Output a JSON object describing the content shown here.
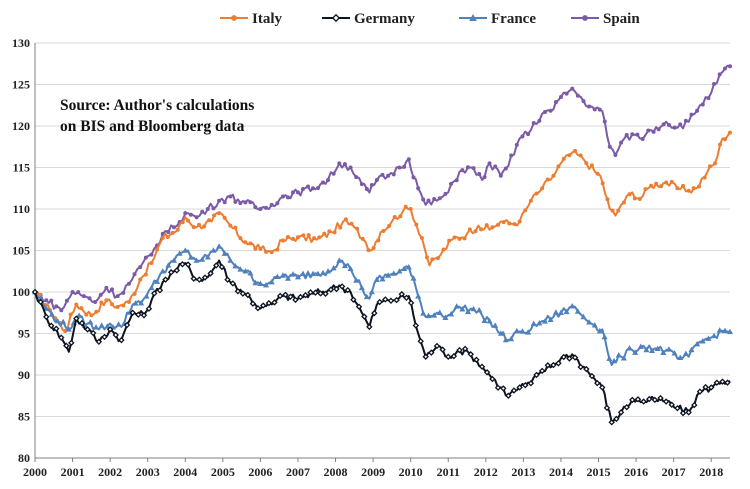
{
  "chart_data": {
    "type": "line",
    "title": "",
    "xlabel": "",
    "ylabel": "",
    "xlim": [
      2000,
      2018.5
    ],
    "ylim": [
      80,
      130
    ],
    "x_ticks": [
      "2000",
      "2001",
      "2002",
      "2003",
      "2004",
      "2005",
      "2006",
      "2007",
      "2008",
      "2009",
      "2010",
      "2011",
      "2012",
      "2013",
      "2014",
      "2015",
      "2016",
      "2017",
      "2018"
    ],
    "y_ticks": [
      "80",
      "85",
      "90",
      "95",
      "100",
      "105",
      "110",
      "115",
      "120",
      "125",
      "130"
    ],
    "grid": "horizontal",
    "legend_position": "top",
    "annotation": {
      "line1": "Source: Author's calculations",
      "line2": "on BIS and Bloomberg data"
    },
    "series": [
      {
        "name": "Italy",
        "color": "#ED7D31",
        "marker": "circle",
        "points": [
          [
            2000.0,
            100
          ],
          [
            2000.4,
            97.8
          ],
          [
            2000.8,
            95.3
          ],
          [
            2001.1,
            98.5
          ],
          [
            2001.5,
            97.2
          ],
          [
            2001.9,
            99.0
          ],
          [
            2002.2,
            98.2
          ],
          [
            2002.5,
            98.8
          ],
          [
            2002.8,
            101.5
          ],
          [
            2003.1,
            103.5
          ],
          [
            2003.4,
            106.5
          ],
          [
            2003.8,
            107.5
          ],
          [
            2004.0,
            109.0
          ],
          [
            2004.3,
            107.8
          ],
          [
            2004.7,
            108.5
          ],
          [
            2004.9,
            109.5
          ],
          [
            2005.2,
            108.0
          ],
          [
            2005.6,
            106.0
          ],
          [
            2006.0,
            105.2
          ],
          [
            2006.3,
            104.8
          ],
          [
            2006.6,
            106.2
          ],
          [
            2007.0,
            106.6
          ],
          [
            2007.5,
            106.3
          ],
          [
            2007.9,
            107.2
          ],
          [
            2008.2,
            108.5
          ],
          [
            2008.5,
            107.8
          ],
          [
            2008.8,
            106.0
          ],
          [
            2008.95,
            105.0
          ],
          [
            2009.2,
            107.2
          ],
          [
            2009.5,
            108.5
          ],
          [
            2009.8,
            109.8
          ],
          [
            2010.0,
            110.0
          ],
          [
            2010.3,
            106.5
          ],
          [
            2010.5,
            103.2
          ],
          [
            2010.8,
            104.5
          ],
          [
            2011.1,
            106.3
          ],
          [
            2011.5,
            107.0
          ],
          [
            2011.8,
            108.0
          ],
          [
            2012.1,
            107.5
          ],
          [
            2012.4,
            108.5
          ],
          [
            2012.7,
            108.2
          ],
          [
            2012.9,
            108.5
          ],
          [
            2013.2,
            111.0
          ],
          [
            2013.5,
            112.5
          ],
          [
            2013.8,
            114.0
          ],
          [
            2014.0,
            115.5
          ],
          [
            2014.3,
            116.8
          ],
          [
            2014.6,
            116.0
          ],
          [
            2014.9,
            114.5
          ],
          [
            2015.05,
            114.0
          ],
          [
            2015.3,
            110.0
          ],
          [
            2015.45,
            109.2
          ],
          [
            2015.6,
            110.5
          ],
          [
            2015.9,
            112.0
          ],
          [
            2016.1,
            111.2
          ],
          [
            2016.4,
            112.8
          ],
          [
            2016.8,
            113.2
          ],
          [
            2017.1,
            112.5
          ],
          [
            2017.4,
            112.2
          ],
          [
            2017.6,
            112.5
          ],
          [
            2017.9,
            114.5
          ],
          [
            2018.1,
            115.5
          ],
          [
            2018.3,
            118.5
          ],
          [
            2018.5,
            119.2
          ]
        ]
      },
      {
        "name": "Germany",
        "color": "#0D1420",
        "marker": "diamond",
        "points": [
          [
            2000.0,
            100
          ],
          [
            2000.3,
            97.0
          ],
          [
            2000.7,
            94.5
          ],
          [
            2000.9,
            92.8
          ],
          [
            2001.1,
            96.8
          ],
          [
            2001.4,
            95.5
          ],
          [
            2001.7,
            94.0
          ],
          [
            2002.0,
            95.5
          ],
          [
            2002.3,
            94.2
          ],
          [
            2002.6,
            97.5
          ],
          [
            2002.9,
            97.2
          ],
          [
            2003.1,
            99.0
          ],
          [
            2003.4,
            101.2
          ],
          [
            2003.7,
            102.5
          ],
          [
            2004.0,
            103.5
          ],
          [
            2004.3,
            101.5
          ],
          [
            2004.6,
            101.8
          ],
          [
            2004.9,
            103.8
          ],
          [
            2005.2,
            101.2
          ],
          [
            2005.6,
            99.8
          ],
          [
            2006.0,
            98.0
          ],
          [
            2006.3,
            98.5
          ],
          [
            2006.6,
            99.5
          ],
          [
            2007.0,
            99.2
          ],
          [
            2007.4,
            99.8
          ],
          [
            2007.8,
            100.2
          ],
          [
            2008.1,
            100.8
          ],
          [
            2008.4,
            100.0
          ],
          [
            2008.7,
            97.5
          ],
          [
            2008.9,
            95.8
          ],
          [
            2009.1,
            98.5
          ],
          [
            2009.4,
            99.0
          ],
          [
            2009.7,
            99.3
          ],
          [
            2009.95,
            99.5
          ],
          [
            2010.2,
            95.0
          ],
          [
            2010.4,
            92.2
          ],
          [
            2010.7,
            93.5
          ],
          [
            2011.0,
            92.2
          ],
          [
            2011.3,
            93.0
          ],
          [
            2011.6,
            92.5
          ],
          [
            2011.9,
            91.0
          ],
          [
            2012.1,
            90.0
          ],
          [
            2012.4,
            88.5
          ],
          [
            2012.6,
            87.5
          ],
          [
            2012.9,
            88.5
          ],
          [
            2013.2,
            89.0
          ],
          [
            2013.5,
            90.5
          ],
          [
            2013.8,
            91.2
          ],
          [
            2014.0,
            92.0
          ],
          [
            2014.3,
            92.5
          ],
          [
            2014.6,
            91.0
          ],
          [
            2014.9,
            89.5
          ],
          [
            2015.1,
            88.5
          ],
          [
            2015.35,
            84.3
          ],
          [
            2015.6,
            85.5
          ],
          [
            2015.9,
            87.0
          ],
          [
            2016.2,
            86.8
          ],
          [
            2016.5,
            87.0
          ],
          [
            2016.8,
            86.8
          ],
          [
            2017.1,
            86.0
          ],
          [
            2017.4,
            85.5
          ],
          [
            2017.7,
            88.0
          ],
          [
            2018.0,
            88.5
          ],
          [
            2018.3,
            89.2
          ],
          [
            2018.5,
            89.3
          ]
        ]
      },
      {
        "name": "France",
        "color": "#4F81BD",
        "marker": "triangle",
        "points": [
          [
            2000.0,
            100
          ],
          [
            2000.3,
            98.0
          ],
          [
            2000.6,
            96.5
          ],
          [
            2000.9,
            95.5
          ],
          [
            2001.1,
            97.0
          ],
          [
            2001.4,
            96.2
          ],
          [
            2001.7,
            95.5
          ],
          [
            2002.0,
            96.2
          ],
          [
            2002.3,
            95.8
          ],
          [
            2002.6,
            98.5
          ],
          [
            2002.9,
            99.2
          ],
          [
            2003.1,
            100.5
          ],
          [
            2003.4,
            102.5
          ],
          [
            2003.7,
            103.8
          ],
          [
            2004.0,
            105.0
          ],
          [
            2004.3,
            103.8
          ],
          [
            2004.6,
            104.2
          ],
          [
            2004.9,
            105.5
          ],
          [
            2005.2,
            103.8
          ],
          [
            2005.6,
            102.5
          ],
          [
            2006.0,
            101.0
          ],
          [
            2006.3,
            101.2
          ],
          [
            2006.6,
            102.0
          ],
          [
            2007.0,
            101.8
          ],
          [
            2007.4,
            102.2
          ],
          [
            2007.8,
            102.5
          ],
          [
            2008.1,
            103.8
          ],
          [
            2008.4,
            102.8
          ],
          [
            2008.7,
            100.5
          ],
          [
            2008.9,
            99.2
          ],
          [
            2009.1,
            101.5
          ],
          [
            2009.4,
            102.0
          ],
          [
            2009.7,
            102.5
          ],
          [
            2009.95,
            103.0
          ],
          [
            2010.2,
            99.5
          ],
          [
            2010.4,
            97.0
          ],
          [
            2010.7,
            97.5
          ],
          [
            2011.0,
            97.2
          ],
          [
            2011.3,
            98.2
          ],
          [
            2011.6,
            98.0
          ],
          [
            2011.9,
            97.2
          ],
          [
            2012.1,
            96.5
          ],
          [
            2012.4,
            95.0
          ],
          [
            2012.6,
            94.2
          ],
          [
            2012.9,
            95.2
          ],
          [
            2013.2,
            95.5
          ],
          [
            2013.5,
            96.5
          ],
          [
            2013.8,
            97.0
          ],
          [
            2014.0,
            97.5
          ],
          [
            2014.3,
            98.3
          ],
          [
            2014.6,
            97.0
          ],
          [
            2014.9,
            96.0
          ],
          [
            2015.1,
            95.5
          ],
          [
            2015.35,
            91.2
          ],
          [
            2015.6,
            92.2
          ],
          [
            2015.9,
            93.0
          ],
          [
            2016.2,
            93.5
          ],
          [
            2016.5,
            93.2
          ],
          [
            2016.8,
            93.0
          ],
          [
            2017.1,
            92.0
          ],
          [
            2017.4,
            92.2
          ],
          [
            2017.7,
            94.0
          ],
          [
            2018.0,
            94.5
          ],
          [
            2018.3,
            95.3
          ],
          [
            2018.5,
            95.2
          ]
        ]
      },
      {
        "name": "Spain",
        "color": "#7B5AA6",
        "marker": "circle",
        "points": [
          [
            2000.0,
            100
          ],
          [
            2000.3,
            99.0
          ],
          [
            2000.7,
            97.8
          ],
          [
            2001.0,
            100.0
          ],
          [
            2001.3,
            99.5
          ],
          [
            2001.6,
            98.8
          ],
          [
            2001.9,
            100.5
          ],
          [
            2002.2,
            99.5
          ],
          [
            2002.5,
            101.0
          ],
          [
            2002.8,
            103.0
          ],
          [
            2003.1,
            104.5
          ],
          [
            2003.4,
            107.0
          ],
          [
            2003.7,
            107.8
          ],
          [
            2004.0,
            109.5
          ],
          [
            2004.3,
            109.0
          ],
          [
            2004.6,
            110.0
          ],
          [
            2004.9,
            111.0
          ],
          [
            2005.2,
            111.5
          ],
          [
            2005.6,
            110.8
          ],
          [
            2006.0,
            110.0
          ],
          [
            2006.3,
            110.5
          ],
          [
            2006.6,
            111.5
          ],
          [
            2007.0,
            112.0
          ],
          [
            2007.4,
            112.5
          ],
          [
            2007.8,
            113.5
          ],
          [
            2008.1,
            115.5
          ],
          [
            2008.4,
            115.0
          ],
          [
            2008.7,
            113.0
          ],
          [
            2008.9,
            112.0
          ],
          [
            2009.1,
            113.5
          ],
          [
            2009.4,
            114.0
          ],
          [
            2009.7,
            115.0
          ],
          [
            2009.95,
            116.0
          ],
          [
            2010.2,
            112.5
          ],
          [
            2010.4,
            110.5
          ],
          [
            2010.7,
            111.0
          ],
          [
            2011.0,
            112.0
          ],
          [
            2011.3,
            114.5
          ],
          [
            2011.6,
            115.0
          ],
          [
            2011.9,
            113.5
          ],
          [
            2012.1,
            115.5
          ],
          [
            2012.4,
            114.0
          ],
          [
            2012.6,
            115.2
          ],
          [
            2012.9,
            118.5
          ],
          [
            2013.2,
            119.5
          ],
          [
            2013.5,
            121.5
          ],
          [
            2013.8,
            122.0
          ],
          [
            2014.0,
            123.5
          ],
          [
            2014.3,
            124.5
          ],
          [
            2014.6,
            123.0
          ],
          [
            2014.9,
            122.0
          ],
          [
            2015.1,
            121.8
          ],
          [
            2015.3,
            117.5
          ],
          [
            2015.45,
            116.5
          ],
          [
            2015.6,
            118.0
          ],
          [
            2015.9,
            119.0
          ],
          [
            2016.1,
            118.5
          ],
          [
            2016.4,
            119.5
          ],
          [
            2016.8,
            120.5
          ],
          [
            2017.1,
            119.8
          ],
          [
            2017.4,
            120.5
          ],
          [
            2017.7,
            122.5
          ],
          [
            2018.0,
            124.0
          ],
          [
            2018.3,
            126.5
          ],
          [
            2018.5,
            127.2
          ]
        ]
      }
    ]
  }
}
